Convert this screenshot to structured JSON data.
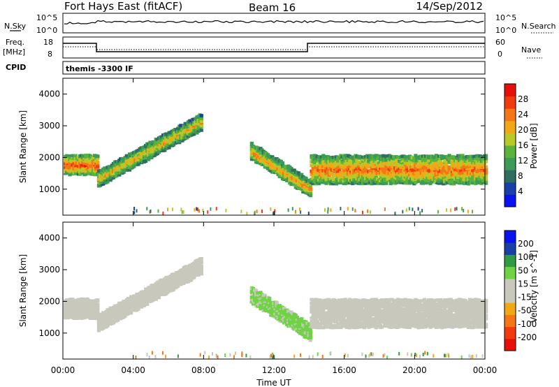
{
  "header": {
    "radar": "Fort Hays East (fitACF)",
    "beam": "Beam 16",
    "date": "14/Sep/2012"
  },
  "noise_panel": {
    "left_label": "N.Sky",
    "left_ticks": [
      "10^5",
      "10^0"
    ],
    "right_label": "N.Search",
    "right_ticks": [
      "10^5",
      "10^0"
    ]
  },
  "freq_panel": {
    "left_label_1": "Freq.",
    "left_label_2": "[MHz]",
    "left_ticks": [
      "18",
      "8"
    ],
    "right_label": "Nave",
    "right_ticks": [
      "60",
      "0"
    ]
  },
  "cpid_panel": {
    "label": "CPID",
    "program": "themis -3300 IF"
  },
  "colors": {
    "power_scale": [
      "#0a12f0",
      "#1a3fa8",
      "#2e6f62",
      "#3d9b55",
      "#5ab43c",
      "#b9c92a",
      "#f0a817",
      "#f57614",
      "#f23a0f",
      "#e80f0a"
    ],
    "velocity_scale": [
      "#e80f0a",
      "#f23a0f",
      "#f57614",
      "#f0a817",
      "#c8c8bc",
      "#c8c8bc",
      "#6fd345",
      "#2f9b45",
      "#1a3fa8",
      "#0a12f0"
    ]
  },
  "chart_data": [
    {
      "type": "heatmap",
      "title": "",
      "xlabel": "Time UT",
      "ylabel": "Slant Range [km]",
      "x_ticks": [
        "00:00",
        "04:00",
        "08:00",
        "12:00",
        "16:00",
        "20:00",
        "00:00"
      ],
      "xlim": [
        0,
        24
      ],
      "ylim": [
        180,
        4500
      ],
      "y_ticks": [
        1000,
        2000,
        3000,
        4000
      ],
      "colorbar": {
        "label": "Power [dB]",
        "range": [
          0,
          32
        ],
        "ticks": [
          "28",
          "24",
          "20",
          "16",
          "12",
          "8",
          "4"
        ]
      },
      "regions": [
        {
          "name": "early",
          "t": [
            0,
            1.9
          ],
          "r_center": 1750,
          "r_width": 600,
          "value": 24
        },
        {
          "name": "arc-1",
          "t": [
            1.9,
            7.8
          ],
          "r_start": 1300,
          "r_end": 3100,
          "value": 18
        },
        {
          "name": "afternoon",
          "t": [
            10.6,
            14.0
          ],
          "r_start": 2200,
          "r_end": 1000,
          "value": 20
        },
        {
          "name": "late",
          "t": [
            14.0,
            24.0
          ],
          "r_center": 1600,
          "r_width": 900,
          "value": 22
        }
      ]
    },
    {
      "type": "heatmap",
      "title": "",
      "xlabel": "Time UT",
      "ylabel": "Slant Range [km]",
      "x_ticks": [
        "00:00",
        "04:00",
        "08:00",
        "12:00",
        "16:00",
        "20:00",
        "00:00"
      ],
      "xlim": [
        0,
        24
      ],
      "ylim": [
        180,
        4500
      ],
      "y_ticks": [
        1000,
        2000,
        3000,
        4000
      ],
      "colorbar": {
        "label": "Velocity [m s^-1]",
        "range": [
          -250,
          250
        ],
        "ticks": [
          "200",
          "100",
          "50",
          "15",
          "-15",
          "-50",
          "-100",
          "-200"
        ]
      },
      "regions": [
        {
          "name": "early",
          "t": [
            0,
            1.9
          ],
          "r_center": 1750,
          "r_width": 600,
          "value": 0
        },
        {
          "name": "arc-1",
          "t": [
            1.9,
            7.8
          ],
          "r_start": 1300,
          "r_end": 3100,
          "value": 0
        },
        {
          "name": "afternoon",
          "t": [
            10.6,
            14.0
          ],
          "r_start": 2200,
          "r_end": 1000,
          "value": 60
        },
        {
          "name": "late",
          "t": [
            14.0,
            24.0
          ],
          "r_center": 1600,
          "r_width": 900,
          "value": 0
        }
      ]
    }
  ]
}
